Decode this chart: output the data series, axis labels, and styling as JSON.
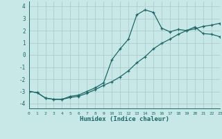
{
  "xlabel": "Humidex (Indice chaleur)",
  "background_color": "#c8e8e8",
  "grid_color": "#b0cccc",
  "line_color": "#1a6868",
  "marker": "+",
  "curve1_x": [
    0,
    1,
    2,
    3,
    4,
    5,
    6,
    7,
    8,
    9,
    10,
    11,
    12,
    13,
    14,
    15,
    16,
    17,
    18,
    19,
    20,
    21,
    22,
    23
  ],
  "curve1_y": [
    -3.0,
    -3.1,
    -3.55,
    -3.65,
    -3.65,
    -3.5,
    -3.4,
    -3.15,
    -2.85,
    -2.5,
    -2.2,
    -1.8,
    -1.3,
    -0.65,
    -0.15,
    0.5,
    0.95,
    1.3,
    1.7,
    2.0,
    2.15,
    2.35,
    2.45,
    2.6
  ],
  "curve2_x": [
    0,
    1,
    2,
    3,
    4,
    5,
    6,
    7,
    8,
    9,
    10,
    11,
    12,
    13,
    14,
    15,
    16,
    17,
    18,
    19,
    20,
    21,
    22,
    23
  ],
  "curve2_y": [
    -3.0,
    -3.1,
    -3.55,
    -3.65,
    -3.65,
    -3.4,
    -3.3,
    -3.0,
    -2.7,
    -2.3,
    -0.4,
    0.5,
    1.3,
    3.3,
    3.7,
    3.5,
    2.2,
    1.9,
    2.1,
    2.0,
    2.3,
    1.75,
    1.7,
    1.5
  ],
  "ylim": [
    -4.4,
    4.4
  ],
  "xlim": [
    0,
    23
  ],
  "yticks": [
    -4,
    -3,
    -2,
    -1,
    0,
    1,
    2,
    3,
    4
  ],
  "xticks": [
    0,
    1,
    2,
    3,
    4,
    5,
    6,
    7,
    8,
    9,
    10,
    11,
    12,
    13,
    14,
    15,
    16,
    17,
    18,
    19,
    20,
    21,
    22,
    23
  ]
}
